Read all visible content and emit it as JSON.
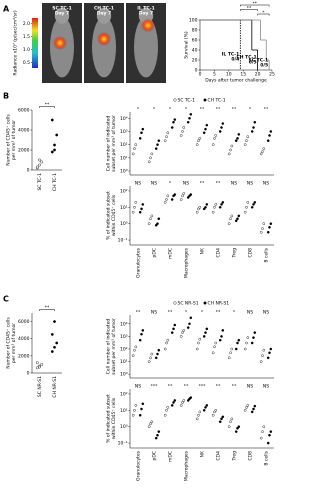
{
  "chart_data": [
    {
      "type": "image",
      "panel": "A",
      "images": [
        {
          "label": "SC TC-1",
          "day": "Day 7"
        },
        {
          "label": "CH TC-1",
          "day": "Day 7"
        },
        {
          "label": "IL TC-1",
          "day": "Day 7"
        }
      ],
      "colorbar": {
        "label": "Radiance x10⁷ (p/sec/cm²/sr)",
        "lim": [
          0.3,
          2.2
        ],
        "ticks": [
          {
            "value": 2,
            "label": "2.0"
          },
          {
            "value": 1.5,
            "label": "1.5"
          },
          {
            "value": 1,
            "label": "1.0"
          },
          {
            "value": 0.5,
            "label": "0.5"
          }
        ]
      }
    },
    {
      "type": "step",
      "ylabel": "Survival (%)",
      "xlabel": "Days after tumor challenge",
      "xlim": [
        0,
        25
      ],
      "ylim": [
        0,
        100
      ],
      "xticks": [
        0,
        5,
        10,
        15,
        20,
        25
      ],
      "yticks": [
        0,
        20,
        40,
        60,
        80,
        100
      ],
      "series": [
        {
          "name": "IL TC-1",
          "ratio": "0/4",
          "color": "#000000",
          "dash": true,
          "x": [
            0,
            14
          ],
          "values": [
            100,
            0
          ]
        },
        {
          "name": "CH TC-1",
          "ratio": "0/5",
          "color": "#000000",
          "dash": false,
          "x": [
            0,
            18,
            20
          ],
          "values": [
            100,
            40,
            0
          ]
        },
        {
          "name": "SC TC-1",
          "ratio": "0/5",
          "color": "#888888",
          "dash": false,
          "x": [
            0,
            21,
            23,
            24
          ],
          "values": [
            100,
            60,
            20,
            0
          ]
        }
      ],
      "significance": [
        "**",
        "**",
        "*"
      ]
    },
    {
      "type": "dot",
      "panel": "B",
      "ylabel": [
        "Number of CD45⁺ cells",
        "per mm³ of tumor"
      ],
      "categories": [
        "SC TC-1",
        "CH TC-1"
      ],
      "ylim": [
        0,
        6000
      ],
      "yticks": [
        0,
        2000,
        4000,
        6000
      ],
      "values": [
        [
          200,
          500,
          800,
          300,
          1000
        ],
        [
          5000,
          2000,
          3500,
          1800,
          2500
        ]
      ],
      "significance": "**"
    },
    {
      "type": "grouped-dot",
      "log": true,
      "categories": [
        "Granulocytes",
        "pDC",
        "mDC",
        "Macrophages",
        "NK",
        "CD4",
        "Treg",
        "CD8",
        "B cells"
      ],
      "series": [
        {
          "name": "SC TC-1",
          "marker": "open",
          "color": "#000000"
        },
        {
          "name": "CH TC-1",
          "marker": "filled",
          "color": "#000000"
        }
      ],
      "panels": [
        {
          "ylabel": [
            "Cell number of indicated",
            "subset per mm³ of tumor"
          ],
          "ylim": [
            0.5,
            30000
          ],
          "yticks": [
            {
              "value": 1,
              "label": "10⁰"
            },
            {
              "value": 10,
              "label": "10¹"
            },
            {
              "value": 100,
              "label": "10²"
            },
            {
              "value": 1000,
              "label": "10³"
            },
            {
              "value": 10000,
              "label": "10⁴"
            }
          ],
          "significance": [
            "*",
            "*",
            "*",
            "*",
            "**",
            "**",
            "**",
            "*",
            "**"
          ],
          "values": [
            [
              [
                20,
                50,
                100
              ],
              [
                5,
                10,
                20
              ],
              [
                200,
                400,
                800
              ],
              [
                500,
                1000,
                2000
              ],
              [
                100,
                200,
                300
              ],
              [
                100,
                300,
                500
              ],
              [
                20,
                40,
                80
              ],
              [
                100,
                200,
                400
              ],
              [
                20,
                30,
                50
              ]
            ],
            [
              [
                300,
                800,
                1500
              ],
              [
                50,
                100,
                200
              ],
              [
                2000,
                5000,
                8000
              ],
              [
                5000,
                10000,
                20000
              ],
              [
                800,
                1500,
                3000
              ],
              [
                1000,
                2000,
                4000
              ],
              [
                200,
                300,
                600
              ],
              [
                1000,
                2000,
                5000
              ],
              [
                200,
                500,
                1000
              ]
            ]
          ]
        },
        {
          "ylabel": [
            "% of indicated subset",
            "within CD45⁺ cells"
          ],
          "ylim": [
            0.05,
            200
          ],
          "yticks": [
            {
              "value": 0.1,
              "label": "10⁻¹"
            },
            {
              "value": 1,
              "label": "10⁰"
            },
            {
              "value": 10,
              "label": "10¹"
            },
            {
              "value": 100,
              "label": "10²"
            }
          ],
          "significance": [
            "NS",
            "NS",
            "*",
            "NS",
            "**",
            "**",
            "NS",
            "NS",
            "NS"
          ],
          "values": [
            [
              [
                5,
                10,
                20
              ],
              [
                1,
                2,
                3
              ],
              [
                20,
                30,
                50
              ],
              [
                30,
                50,
                70
              ],
              [
                5,
                8,
                10
              ],
              [
                5,
                10,
                15
              ],
              [
                1,
                2,
                3
              ],
              [
                5,
                10,
                20
              ],
              [
                0.3,
                0.5,
                1
              ]
            ],
            [
              [
                5,
                8,
                15
              ],
              [
                0.8,
                1,
                2
              ],
              [
                30,
                50,
                60
              ],
              [
                40,
                50,
                60
              ],
              [
                8,
                10,
                15
              ],
              [
                10,
                15,
                20
              ],
              [
                1.5,
                2,
                3
              ],
              [
                10,
                15,
                20
              ],
              [
                0.3,
                0.6,
                1
              ]
            ]
          ]
        }
      ]
    },
    {
      "type": "dot",
      "panel": "C",
      "ylabel": [
        "Number of CD45⁺ cells",
        "per mm³ of tumor"
      ],
      "categories": [
        "SC NR-S1",
        "CH NR-S1"
      ],
      "ylim": [
        0,
        7000
      ],
      "yticks": [
        0,
        2000,
        4000,
        6000
      ],
      "values": [
        [
          600,
          800,
          1000,
          1200,
          700
        ],
        [
          2500,
          3000,
          3500,
          4500,
          6000
        ]
      ],
      "significance": "**"
    },
    {
      "type": "grouped-dot",
      "log": true,
      "categories": [
        "Granulocytes",
        "pDC",
        "mDC",
        "Macrophages",
        "NK",
        "CD4",
        "Treg",
        "CD8",
        "B cells"
      ],
      "series": [
        {
          "name": "SC NR-S1",
          "marker": "open",
          "color": "#000000"
        },
        {
          "name": "CH NR-S1",
          "marker": "filled",
          "color": "#000000"
        }
      ],
      "panels": [
        {
          "ylabel": [
            "Cell number of indicated",
            "subset per mm³ of tumor"
          ],
          "ylim": [
            0.5,
            50000
          ],
          "yticks": [
            {
              "value": 1,
              "label": "10⁰"
            },
            {
              "value": 10,
              "label": "10¹"
            },
            {
              "value": 100,
              "label": "10²"
            },
            {
              "value": 1000,
              "label": "10³"
            },
            {
              "value": 10000,
              "label": "10⁴"
            }
          ],
          "significance": [
            "**",
            "NS",
            "**",
            "*",
            "*",
            "**",
            "*",
            "NS",
            "NS"
          ],
          "values": [
            [
              [
                30,
                80,
                150
              ],
              [
                10,
                20,
                40
              ],
              [
                100,
                300,
                500
              ],
              [
                1000,
                2000,
                3000
              ],
              [
                100,
                300,
                600
              ],
              [
                50,
                150,
                300
              ],
              [
                20,
                50,
                100
              ],
              [
                100,
                300,
                800
              ],
              [
                10,
                30,
                80
              ]
            ],
            [
              [
                500,
                1500,
                3000
              ],
              [
                20,
                40,
                80
              ],
              [
                2000,
                4000,
                8000
              ],
              [
                5000,
                10000,
                30000
              ],
              [
                1000,
                2000,
                4000
              ],
              [
                500,
                1000,
                3000
              ],
              [
                100,
                300,
                500
              ],
              [
                300,
                800,
                2000
              ],
              [
                20,
                50,
                100
              ]
            ]
          ]
        },
        {
          "ylabel": [
            "% of indicated subset",
            "within CD45⁺ cells"
          ],
          "ylim": [
            0.05,
            200
          ],
          "yticks": [
            {
              "value": 0.1,
              "label": "10⁻¹"
            },
            {
              "value": 1,
              "label": "10⁰"
            },
            {
              "value": 10,
              "label": "10¹"
            },
            {
              "value": 100,
              "label": "10²"
            }
          ],
          "significance": [
            "NS",
            "***",
            "**",
            "**",
            "***",
            "**",
            "**",
            "NS",
            "NS"
          ],
          "values": [
            [
              [
                5,
                10,
                20
              ],
              [
                1,
                1.5,
                2
              ],
              [
                5,
                10,
                15
              ],
              [
                20,
                30,
                40
              ],
              [
                3,
                5,
                8
              ],
              [
                5,
                8,
                10
              ],
              [
                1,
                2,
                3
              ],
              [
                10,
                15,
                20
              ],
              [
                0.2,
                0.5,
                1
              ]
            ],
            [
              [
                5,
                12,
                25
              ],
              [
                0.2,
                0.3,
                0.5
              ],
              [
                20,
                30,
                40
              ],
              [
                40,
                50,
                60
              ],
              [
                10,
                15,
                20
              ],
              [
                2,
                3,
                4
              ],
              [
                0.5,
                0.8,
                1
              ],
              [
                8,
                12,
                18
              ],
              [
                0.1,
                0.3,
                0.5
              ]
            ]
          ]
        }
      ]
    }
  ]
}
